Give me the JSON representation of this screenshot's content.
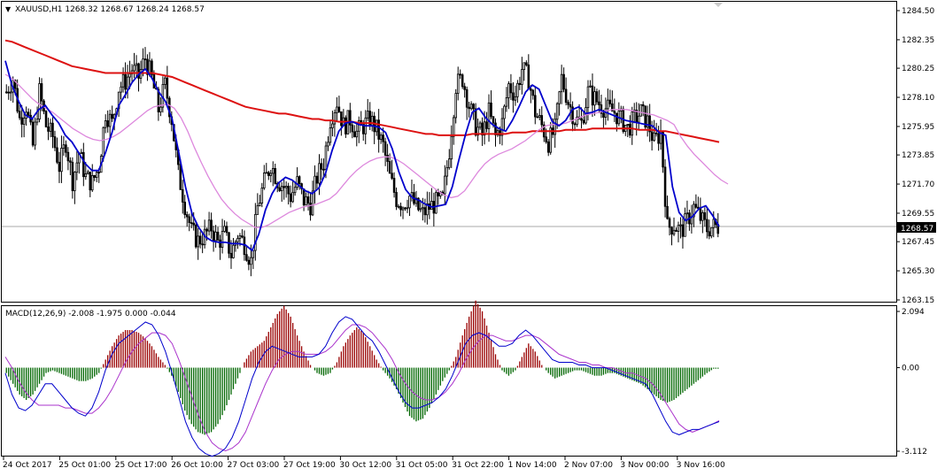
{
  "main_header": "XAUUSD,H1  1268.32 1268.67 1268.24 1268.57",
  "macd_header": "MACD(12,26,9) -2.008 -1.975 0.000 -0.044",
  "colors": {
    "ma_fast": "#0000cc",
    "ma_mid": "#dd88dd",
    "ma_slow": "#dd1111",
    "bull": "#000000",
    "bear": "#000000",
    "macd_pos": "#990000",
    "macd_neg": "#006600",
    "signal": "#aa33cc",
    "macd_line": "#0000cc"
  },
  "chart_data": [
    {
      "type": "candlestick",
      "symbol": "XAUUSD",
      "timeframe": "H1",
      "ohlc_last": {
        "open": 1268.32,
        "high": 1268.67,
        "low": 1268.24,
        "close": 1268.57
      },
      "current_price": "1268.57",
      "ylim": [
        1263.15,
        1284.5
      ],
      "y_ticks": [
        "1284.50",
        "1282.35",
        "1280.25",
        "1278.10",
        "1275.95",
        "1273.85",
        "1271.70",
        "1269.55",
        "1267.45",
        "1265.30",
        "1263.15"
      ],
      "x_ticks": [
        "24 Oct 2017",
        "25 Oct 01:00",
        "25 Oct 17:00",
        "26 Oct 10:00",
        "27 Oct 03:00",
        "27 Oct 19:00",
        "30 Oct 12:00",
        "31 Oct 05:00",
        "31 Oct 22:00",
        "1 Nov 14:00",
        "2 Nov 07:00",
        "3 Nov 00:00",
        "3 Nov 16:00"
      ],
      "close_path": [
        1278.5,
        1279.5,
        1276.5,
        1277.5,
        1274.5,
        1278.5,
        1276.0,
        1275.2,
        1273.0,
        1274.8,
        1272.0,
        1274.0,
        1272.2,
        1271.8,
        1273.0,
        1277.0,
        1276.2,
        1278.8,
        1279.3,
        1280.2,
        1279.6,
        1281.0,
        1279.5,
        1277.2,
        1279.0,
        1276.5,
        1272.5,
        1270.2,
        1268.2,
        1267.5,
        1267.9,
        1268.5,
        1267.4,
        1268.0,
        1266.5,
        1268.0,
        1267.3,
        1266.0,
        1270.0,
        1271.8,
        1273.2,
        1272.0,
        1271.5,
        1270.8,
        1271.8,
        1270.5,
        1270.2,
        1272.2,
        1273.3,
        1276.5,
        1277.8,
        1276.0,
        1276.5,
        1275.5,
        1276.0,
        1276.5,
        1275.7,
        1274.5,
        1272.2,
        1270.6,
        1270.2,
        1270.8,
        1270.0,
        1269.5,
        1270.0,
        1270.3,
        1270.5,
        1274.2,
        1279.0,
        1279.5,
        1277.5,
        1276.0,
        1275.3,
        1277.0,
        1275.2,
        1276.2,
        1279.0,
        1278.3,
        1280.2,
        1279.5,
        1277.0,
        1276.0,
        1274.8,
        1275.7,
        1279.5,
        1277.8,
        1276.5,
        1276.2,
        1278.5,
        1278.0,
        1277.5,
        1277.2,
        1277.0,
        1276.5,
        1275.8,
        1276.5,
        1277.0,
        1276.3,
        1274.8,
        1275.5,
        1268.5,
        1268.7,
        1268.2,
        1269.0,
        1270.0,
        1269.2,
        1268.4,
        1268.57
      ],
      "ma_fast": [
        1280.8,
        1279.0,
        1277.8,
        1276.8,
        1276.5,
        1277.2,
        1277.5,
        1276.8,
        1276.2,
        1275.3,
        1274.8,
        1274.0,
        1273.2,
        1272.7,
        1272.7,
        1274.0,
        1275.5,
        1277.5,
        1278.3,
        1279.2,
        1279.8,
        1280.2,
        1279.5,
        1278.5,
        1277.8,
        1276.5,
        1274.0,
        1271.5,
        1269.5,
        1268.5,
        1267.8,
        1267.5,
        1267.4,
        1267.4,
        1267.3,
        1267.3,
        1267.2,
        1266.8,
        1268.0,
        1269.8,
        1271.0,
        1271.8,
        1272.2,
        1272.0,
        1271.6,
        1271.2,
        1271.0,
        1271.4,
        1272.5,
        1274.2,
        1275.6,
        1276.2,
        1276.3,
        1276.1,
        1276.0,
        1276.0,
        1275.9,
        1275.5,
        1274.3,
        1272.6,
        1271.3,
        1270.7,
        1270.5,
        1270.2,
        1270.0,
        1270.1,
        1270.2,
        1271.5,
        1273.5,
        1275.4,
        1277.0,
        1277.3,
        1276.6,
        1276.1,
        1275.8,
        1275.6,
        1276.4,
        1277.4,
        1278.5,
        1279.0,
        1278.7,
        1277.5,
        1276.3,
        1276.0,
        1276.4,
        1277.2,
        1277.4,
        1276.9,
        1277.0,
        1277.2,
        1277.0,
        1276.8,
        1276.6,
        1276.4,
        1276.3,
        1276.2,
        1276.1,
        1276.0,
        1275.5,
        1275.3,
        1271.5,
        1269.6,
        1269.0,
        1269.3,
        1269.9,
        1270.1,
        1269.4,
        1268.57
      ],
      "ma_mid": [
        1279.8,
        1279.5,
        1279.0,
        1278.5,
        1278.0,
        1277.6,
        1277.3,
        1277.0,
        1276.6,
        1276.2,
        1275.8,
        1275.5,
        1275.2,
        1275.0,
        1274.9,
        1275.0,
        1275.2,
        1275.5,
        1275.9,
        1276.3,
        1276.7,
        1277.1,
        1277.4,
        1277.5,
        1277.6,
        1277.3,
        1276.6,
        1275.6,
        1274.4,
        1273.3,
        1272.3,
        1271.4,
        1270.6,
        1270.0,
        1269.5,
        1269.1,
        1268.8,
        1268.5,
        1268.5,
        1268.7,
        1269.0,
        1269.3,
        1269.6,
        1269.8,
        1270.0,
        1270.1,
        1270.2,
        1270.4,
        1270.6,
        1271.0,
        1271.6,
        1272.2,
        1272.7,
        1273.1,
        1273.4,
        1273.6,
        1273.7,
        1273.7,
        1273.5,
        1273.2,
        1272.8,
        1272.4,
        1272.0,
        1271.6,
        1271.2,
        1270.9,
        1270.7,
        1270.8,
        1271.2,
        1271.9,
        1272.6,
        1273.2,
        1273.6,
        1273.9,
        1274.1,
        1274.3,
        1274.6,
        1274.9,
        1275.3,
        1275.7,
        1276.0,
        1276.1,
        1276.1,
        1276.2,
        1276.4,
        1276.6,
        1276.8,
        1276.9,
        1277.0,
        1277.1,
        1277.2,
        1277.2,
        1277.2,
        1277.1,
        1277.0,
        1276.9,
        1276.8,
        1276.6,
        1276.4,
        1276.1,
        1275.2,
        1274.5,
        1273.9,
        1273.4,
        1272.9,
        1272.4,
        1272.0,
        1271.7
      ],
      "ma_slow": [
        1282.3,
        1282.2,
        1282.0,
        1281.8,
        1281.6,
        1281.4,
        1281.2,
        1281.0,
        1280.8,
        1280.6,
        1280.4,
        1280.3,
        1280.2,
        1280.1,
        1280.0,
        1279.9,
        1279.9,
        1279.9,
        1279.9,
        1279.9,
        1279.9,
        1279.9,
        1279.9,
        1279.8,
        1279.7,
        1279.6,
        1279.4,
        1279.2,
        1279.0,
        1278.8,
        1278.6,
        1278.4,
        1278.2,
        1278.0,
        1277.8,
        1277.6,
        1277.4,
        1277.3,
        1277.2,
        1277.1,
        1277.0,
        1276.9,
        1276.9,
        1276.8,
        1276.7,
        1276.6,
        1276.5,
        1276.5,
        1276.4,
        1276.4,
        1276.3,
        1276.3,
        1276.3,
        1276.2,
        1276.2,
        1276.2,
        1276.1,
        1276.0,
        1275.9,
        1275.8,
        1275.7,
        1275.6,
        1275.5,
        1275.4,
        1275.4,
        1275.3,
        1275.3,
        1275.3,
        1275.3,
        1275.3,
        1275.4,
        1275.4,
        1275.4,
        1275.4,
        1275.4,
        1275.4,
        1275.5,
        1275.5,
        1275.5,
        1275.6,
        1275.6,
        1275.6,
        1275.6,
        1275.6,
        1275.7,
        1275.7,
        1275.7,
        1275.7,
        1275.8,
        1275.8,
        1275.8,
        1275.8,
        1275.8,
        1275.8,
        1275.8,
        1275.7,
        1275.7,
        1275.7,
        1275.6,
        1275.6,
        1275.5,
        1275.4,
        1275.3,
        1275.2,
        1275.1,
        1275.0,
        1274.9,
        1274.8
      ]
    },
    {
      "type": "macd",
      "params": "12,26,9",
      "values": {
        "macd": -2.008,
        "signal": -1.975,
        "hist_pos": 0.0,
        "hist_neg": -0.044
      },
      "ylim": [
        -3.112,
        2.094
      ],
      "y_ticks": [
        "2.094",
        "0.00",
        "-3.112"
      ],
      "histogram": [
        -0.2,
        -0.6,
        -1.0,
        -1.2,
        -1.0,
        -0.6,
        -0.2,
        -0.1,
        -0.2,
        -0.3,
        -0.4,
        -0.5,
        -0.5,
        -0.4,
        -0.2,
        0.3,
        0.8,
        1.2,
        1.4,
        1.4,
        1.3,
        1.1,
        0.8,
        0.4,
        0.1,
        -0.3,
        -0.9,
        -1.6,
        -2.1,
        -2.4,
        -2.5,
        -2.4,
        -2.1,
        -1.6,
        -1.0,
        -0.4,
        0.2,
        0.6,
        0.8,
        1.0,
        1.5,
        2.0,
        2.3,
        1.9,
        1.2,
        0.6,
        0.1,
        -0.2,
        -0.3,
        -0.2,
        0.2,
        0.8,
        1.2,
        1.5,
        1.3,
        0.8,
        0.3,
        -0.1,
        -0.4,
        -0.8,
        -1.3,
        -1.8,
        -2.0,
        -1.9,
        -1.5,
        -1.0,
        -0.5,
        -0.1,
        0.4,
        1.2,
        1.9,
        2.5,
        2.1,
        1.3,
        0.5,
        -0.1,
        -0.3,
        -0.1,
        0.4,
        0.9,
        0.6,
        0.1,
        -0.2,
        -0.4,
        -0.3,
        -0.2,
        -0.1,
        -0.1,
        -0.2,
        -0.3,
        -0.3,
        -0.2,
        -0.2,
        -0.3,
        -0.4,
        -0.5,
        -0.6,
        -0.8,
        -1.0,
        -1.2,
        -1.3,
        -1.2,
        -1.0,
        -0.8,
        -0.6,
        -0.4,
        -0.2,
        -0.04
      ],
      "macd_line": [
        -0.2,
        -1.0,
        -1.5,
        -1.6,
        -1.4,
        -1.0,
        -0.6,
        -0.6,
        -0.9,
        -1.2,
        -1.5,
        -1.7,
        -1.8,
        -1.5,
        -0.9,
        -0.1,
        0.5,
        0.9,
        1.1,
        1.3,
        1.5,
        1.7,
        1.6,
        1.2,
        0.6,
        -0.2,
        -1.1,
        -2.0,
        -2.6,
        -3.0,
        -3.2,
        -3.3,
        -3.2,
        -3.0,
        -2.6,
        -2.0,
        -1.2,
        -0.4,
        0.2,
        0.6,
        0.8,
        0.7,
        0.6,
        0.5,
        0.4,
        0.4,
        0.4,
        0.5,
        0.8,
        1.3,
        1.7,
        1.9,
        1.8,
        1.5,
        1.2,
        1.0,
        0.6,
        0.1,
        -0.4,
        -0.9,
        -1.3,
        -1.5,
        -1.5,
        -1.4,
        -1.3,
        -1.1,
        -0.8,
        -0.3,
        0.3,
        0.9,
        1.2,
        1.3,
        1.2,
        1.0,
        0.8,
        0.8,
        0.9,
        1.2,
        1.4,
        1.2,
        0.9,
        0.6,
        0.3,
        0.2,
        0.2,
        0.2,
        0.1,
        0.1,
        0.0,
        0.0,
        0.0,
        -0.1,
        -0.2,
        -0.3,
        -0.4,
        -0.5,
        -0.6,
        -1.0,
        -1.5,
        -2.0,
        -2.4,
        -2.5,
        -2.4,
        -2.3,
        -2.3,
        -2.2,
        -2.1,
        -2.008
      ],
      "signal_line": [
        0.4,
        0.0,
        -0.5,
        -0.9,
        -1.2,
        -1.4,
        -1.4,
        -1.4,
        -1.4,
        -1.5,
        -1.5,
        -1.6,
        -1.7,
        -1.7,
        -1.5,
        -1.2,
        -0.8,
        -0.3,
        0.2,
        0.6,
        0.9,
        1.1,
        1.3,
        1.3,
        1.2,
        0.9,
        0.3,
        -0.4,
        -1.1,
        -1.8,
        -2.4,
        -2.8,
        -3.0,
        -3.1,
        -3.0,
        -2.8,
        -2.4,
        -1.8,
        -1.2,
        -0.6,
        -0.1,
        0.3,
        0.5,
        0.6,
        0.6,
        0.5,
        0.5,
        0.5,
        0.6,
        0.8,
        1.1,
        1.4,
        1.6,
        1.6,
        1.5,
        1.3,
        1.0,
        0.7,
        0.3,
        -0.2,
        -0.6,
        -0.9,
        -1.1,
        -1.2,
        -1.2,
        -1.1,
        -0.9,
        -0.6,
        -0.2,
        0.3,
        0.7,
        1.0,
        1.2,
        1.2,
        1.1,
        1.0,
        1.0,
        1.1,
        1.2,
        1.2,
        1.1,
        0.9,
        0.7,
        0.5,
        0.4,
        0.3,
        0.2,
        0.2,
        0.1,
        0.1,
        0.0,
        0.0,
        -0.1,
        -0.2,
        -0.2,
        -0.3,
        -0.4,
        -0.6,
        -0.9,
        -1.3,
        -1.7,
        -2.1,
        -2.3,
        -2.4,
        -2.3,
        -2.2,
        -2.1,
        -1.975
      ]
    }
  ]
}
